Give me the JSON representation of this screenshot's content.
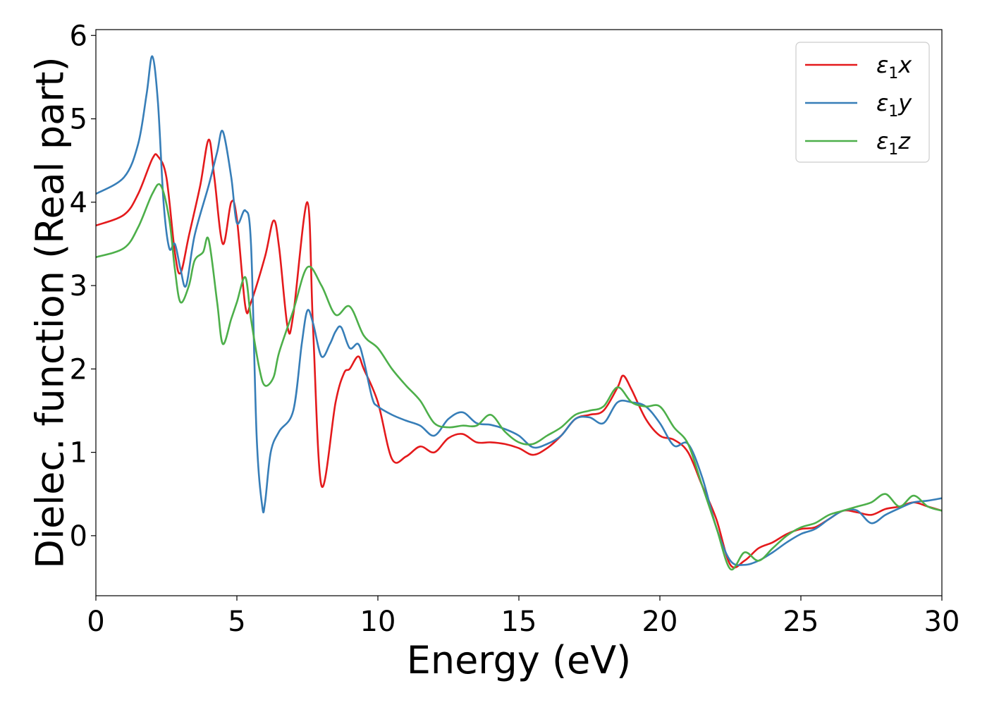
{
  "chart_data": {
    "type": "line",
    "title": "",
    "xlabel": "Energy (eV)",
    "ylabel": "Dielec. function (Real part)",
    "xlim": [
      0,
      30
    ],
    "ylim": [
      -0.72,
      6.07
    ],
    "xticks": [
      0,
      5,
      10,
      15,
      20,
      25,
      30
    ],
    "yticks": [
      0,
      1,
      2,
      3,
      4,
      5,
      6
    ],
    "xtick_labels": [
      "0",
      "5",
      "10",
      "15",
      "20",
      "25",
      "30"
    ],
    "ytick_labels": [
      "0",
      "1",
      "2",
      "3",
      "4",
      "5",
      "6"
    ],
    "grid": false,
    "legend_position": "top-right",
    "series": [
      {
        "name": "ε1x",
        "legend_main": "ε",
        "legend_sub": "1",
        "legend_suffix": "x",
        "color": "#e41a1c",
        "x": [
          0,
          1,
          1.5,
          2,
          2.2,
          2.5,
          2.8,
          3.0,
          3.3,
          3.7,
          4.0,
          4.2,
          4.5,
          4.8,
          5.0,
          5.3,
          5.5,
          6.0,
          6.3,
          6.5,
          6.8,
          7.0,
          7.5,
          7.7,
          8.0,
          8.5,
          8.8,
          9.0,
          9.3,
          9.5,
          10.0,
          10.5,
          11.0,
          11.5,
          12.0,
          12.5,
          13.0,
          13.5,
          14.0,
          14.5,
          15.0,
          15.5,
          16.0,
          16.5,
          17.0,
          17.5,
          18.0,
          18.5,
          18.7,
          19.0,
          19.5,
          20.0,
          20.5,
          21.0,
          21.5,
          22.0,
          22.5,
          23.0,
          23.5,
          24.0,
          24.5,
          25.0,
          25.5,
          26.0,
          26.5,
          27.0,
          27.5,
          28.0,
          28.5,
          29.0,
          29.5,
          30.0
        ],
        "y": [
          3.72,
          3.85,
          4.1,
          4.52,
          4.55,
          4.3,
          3.4,
          3.15,
          3.6,
          4.2,
          4.75,
          4.3,
          3.5,
          4.0,
          3.8,
          2.75,
          2.8,
          3.35,
          3.78,
          3.45,
          2.5,
          2.65,
          4.0,
          2.5,
          0.6,
          1.6,
          1.95,
          2.0,
          2.15,
          2.0,
          1.6,
          0.92,
          0.95,
          1.07,
          1.0,
          1.17,
          1.22,
          1.12,
          1.12,
          1.1,
          1.05,
          0.97,
          1.05,
          1.2,
          1.4,
          1.45,
          1.5,
          1.78,
          1.92,
          1.75,
          1.4,
          1.2,
          1.15,
          1.0,
          0.6,
          0.2,
          -0.35,
          -0.3,
          -0.15,
          -0.08,
          0.02,
          0.08,
          0.1,
          0.2,
          0.3,
          0.28,
          0.25,
          0.32,
          0.35,
          0.4,
          0.35,
          0.3
        ]
      },
      {
        "name": "ε1y",
        "legend_main": "ε",
        "legend_sub": "1",
        "legend_suffix": "y",
        "color": "#377eb8",
        "x": [
          0,
          1,
          1.5,
          1.8,
          2.0,
          2.2,
          2.4,
          2.6,
          2.8,
          3.0,
          3.2,
          3.5,
          4.0,
          4.3,
          4.5,
          4.8,
          5.0,
          5.3,
          5.5,
          5.7,
          5.9,
          6.0,
          6.2,
          6.5,
          7.0,
          7.3,
          7.5,
          7.7,
          8.0,
          8.3,
          8.5,
          8.7,
          9.0,
          9.3,
          9.5,
          9.8,
          10.0,
          10.5,
          11.0,
          11.5,
          12.0,
          12.5,
          13.0,
          13.5,
          14.0,
          14.5,
          15.0,
          15.5,
          16.0,
          16.5,
          17.0,
          17.5,
          18.0,
          18.5,
          19.0,
          19.5,
          20.0,
          20.5,
          21.0,
          21.5,
          22.0,
          22.5,
          23.0,
          23.5,
          24.0,
          24.5,
          25.0,
          25.5,
          26.0,
          26.5,
          27.0,
          27.5,
          28.0,
          28.5,
          29.0,
          29.5,
          30.0
        ],
        "y": [
          4.1,
          4.3,
          4.7,
          5.3,
          5.75,
          5.2,
          4.0,
          3.45,
          3.5,
          3.2,
          3.0,
          3.6,
          4.2,
          4.6,
          4.85,
          4.3,
          3.75,
          3.9,
          3.5,
          1.2,
          0.35,
          0.4,
          1.0,
          1.25,
          1.5,
          2.3,
          2.7,
          2.55,
          2.15,
          2.3,
          2.45,
          2.5,
          2.25,
          2.3,
          2.1,
          1.65,
          1.55,
          1.45,
          1.38,
          1.32,
          1.2,
          1.4,
          1.48,
          1.35,
          1.33,
          1.28,
          1.2,
          1.06,
          1.1,
          1.2,
          1.4,
          1.42,
          1.35,
          1.6,
          1.6,
          1.55,
          1.35,
          1.08,
          1.1,
          0.7,
          0.1,
          -0.3,
          -0.35,
          -0.3,
          -0.2,
          -0.08,
          0.02,
          0.08,
          0.2,
          0.3,
          0.3,
          0.15,
          0.25,
          0.33,
          0.4,
          0.42,
          0.45
        ]
      },
      {
        "name": "ε1z",
        "legend_main": "ε",
        "legend_sub": "1",
        "legend_suffix": "z",
        "color": "#4daf4a",
        "x": [
          0,
          1,
          1.5,
          2.0,
          2.3,
          2.6,
          2.8,
          3.0,
          3.3,
          3.5,
          3.8,
          4.0,
          4.3,
          4.5,
          4.8,
          5.0,
          5.3,
          5.5,
          5.8,
          6.0,
          6.3,
          6.5,
          7.0,
          7.5,
          8.0,
          8.5,
          9.0,
          9.5,
          10.0,
          10.5,
          11.0,
          11.5,
          12.0,
          12.5,
          13.0,
          13.5,
          14.0,
          14.5,
          15.0,
          15.5,
          16.0,
          16.5,
          17.0,
          17.5,
          18.0,
          18.5,
          19.0,
          19.5,
          20.0,
          20.5,
          21.0,
          21.5,
          22.0,
          22.5,
          23.0,
          23.5,
          24.0,
          24.5,
          25.0,
          25.5,
          26.0,
          26.5,
          27.0,
          27.5,
          28.0,
          28.5,
          29.0,
          29.5,
          30.0
        ],
        "y": [
          3.34,
          3.45,
          3.7,
          4.1,
          4.2,
          3.8,
          3.2,
          2.8,
          3.0,
          3.3,
          3.4,
          3.55,
          2.8,
          2.3,
          2.6,
          2.8,
          3.1,
          2.6,
          2.0,
          1.8,
          1.9,
          2.2,
          2.7,
          3.22,
          3.0,
          2.65,
          2.75,
          2.4,
          2.25,
          2.0,
          1.8,
          1.62,
          1.35,
          1.3,
          1.32,
          1.32,
          1.45,
          1.25,
          1.12,
          1.1,
          1.2,
          1.3,
          1.45,
          1.5,
          1.55,
          1.78,
          1.6,
          1.55,
          1.55,
          1.3,
          1.1,
          0.6,
          0.1,
          -0.4,
          -0.2,
          -0.3,
          -0.15,
          0.0,
          0.1,
          0.15,
          0.25,
          0.3,
          0.35,
          0.4,
          0.5,
          0.35,
          0.48,
          0.35,
          0.3
        ]
      }
    ]
  }
}
